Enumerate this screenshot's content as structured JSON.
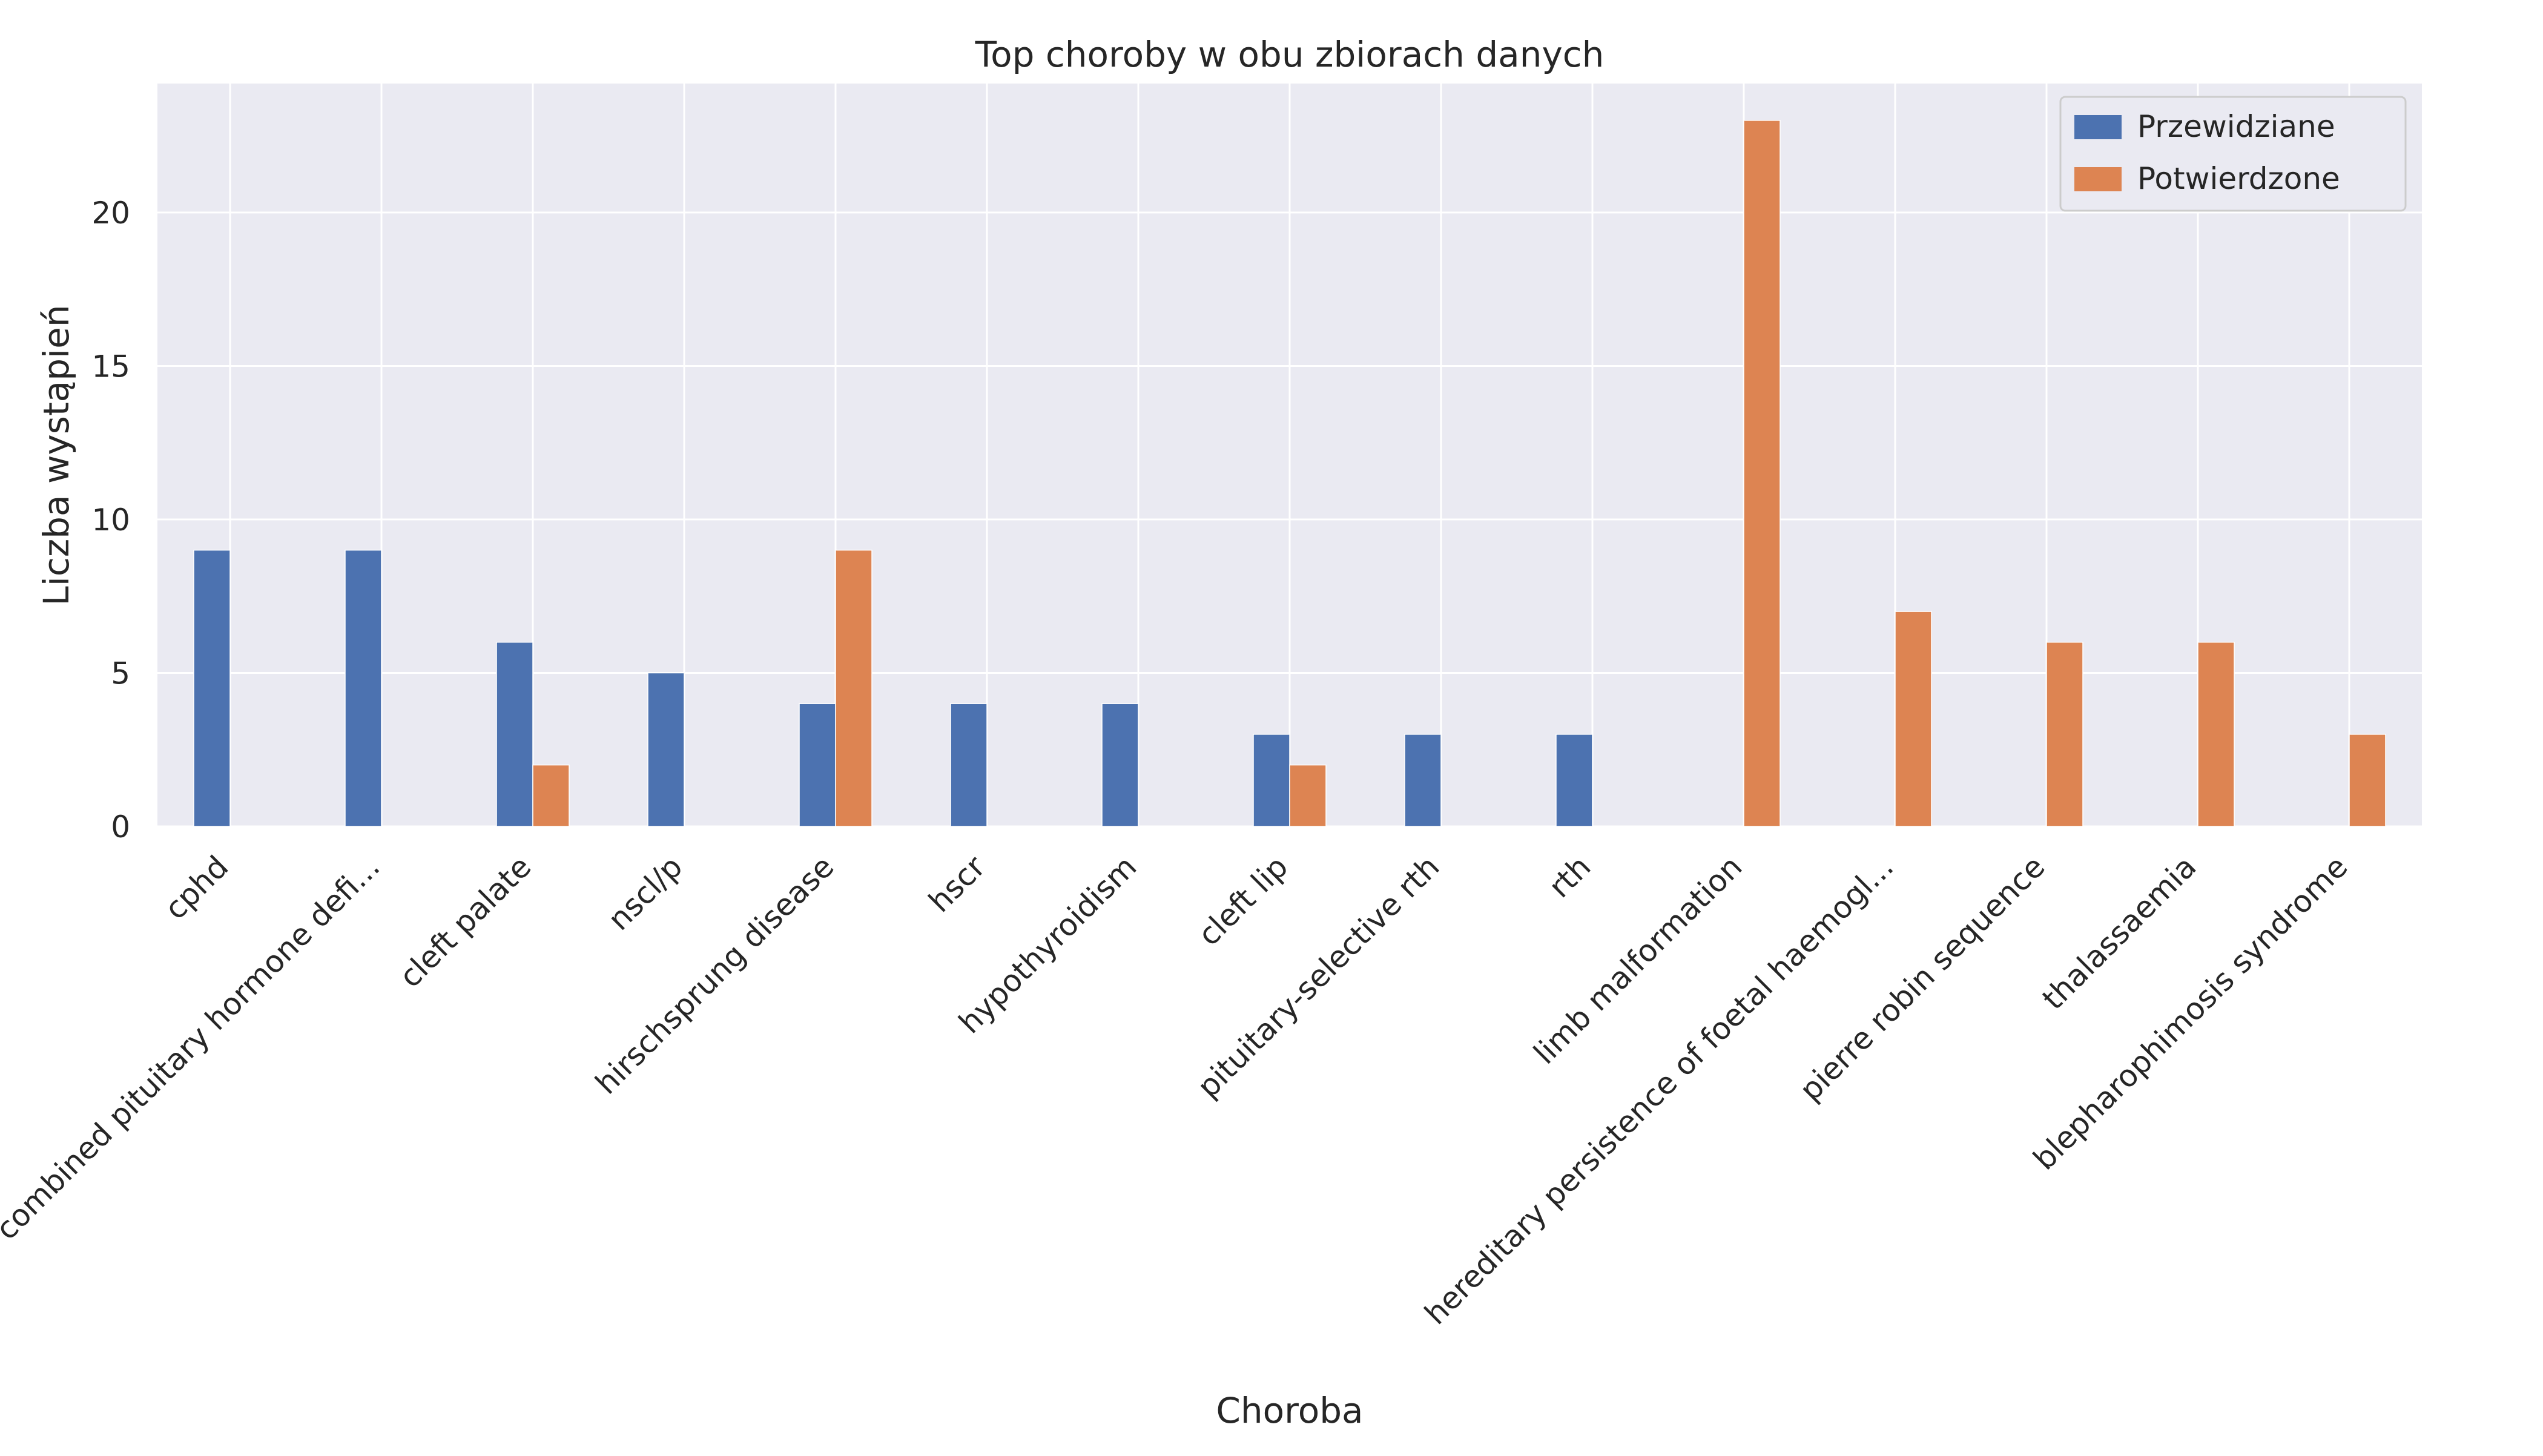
{
  "chart_data": {
    "type": "bar",
    "title": "Top choroby w obu zbiorach danych",
    "xlabel": "Choroba",
    "ylabel": "Liczba wystąpień",
    "ylim": [
      0,
      24.2
    ],
    "yticks": [
      0,
      5,
      10,
      15,
      20
    ],
    "grid": true,
    "legend_position": "top-right",
    "categories": [
      "cphd",
      "familial combined pituitary hormone defi...",
      "cleft palate",
      "nscl/p",
      "hirschsprung disease",
      "hscr",
      "hypothyroidism",
      "cleft lip",
      "pituitary-selective rth",
      "rth",
      "limb malformation",
      "hereditary persistence of foetal haemogl...",
      "pierre robin sequence",
      "thalassaemia",
      "blepharophimosis syndrome"
    ],
    "series": [
      {
        "name": "Przewidziane",
        "color": "#4c72b0",
        "values": [
          9,
          9,
          6,
          5,
          4,
          4,
          4,
          3,
          3,
          3,
          0,
          0,
          0,
          0,
          0
        ]
      },
      {
        "name": "Potwierdzone",
        "color": "#dd8452",
        "values": [
          0,
          0,
          2,
          0,
          9,
          0,
          0,
          2,
          0,
          0,
          23,
          7,
          6,
          6,
          3
        ]
      }
    ]
  }
}
